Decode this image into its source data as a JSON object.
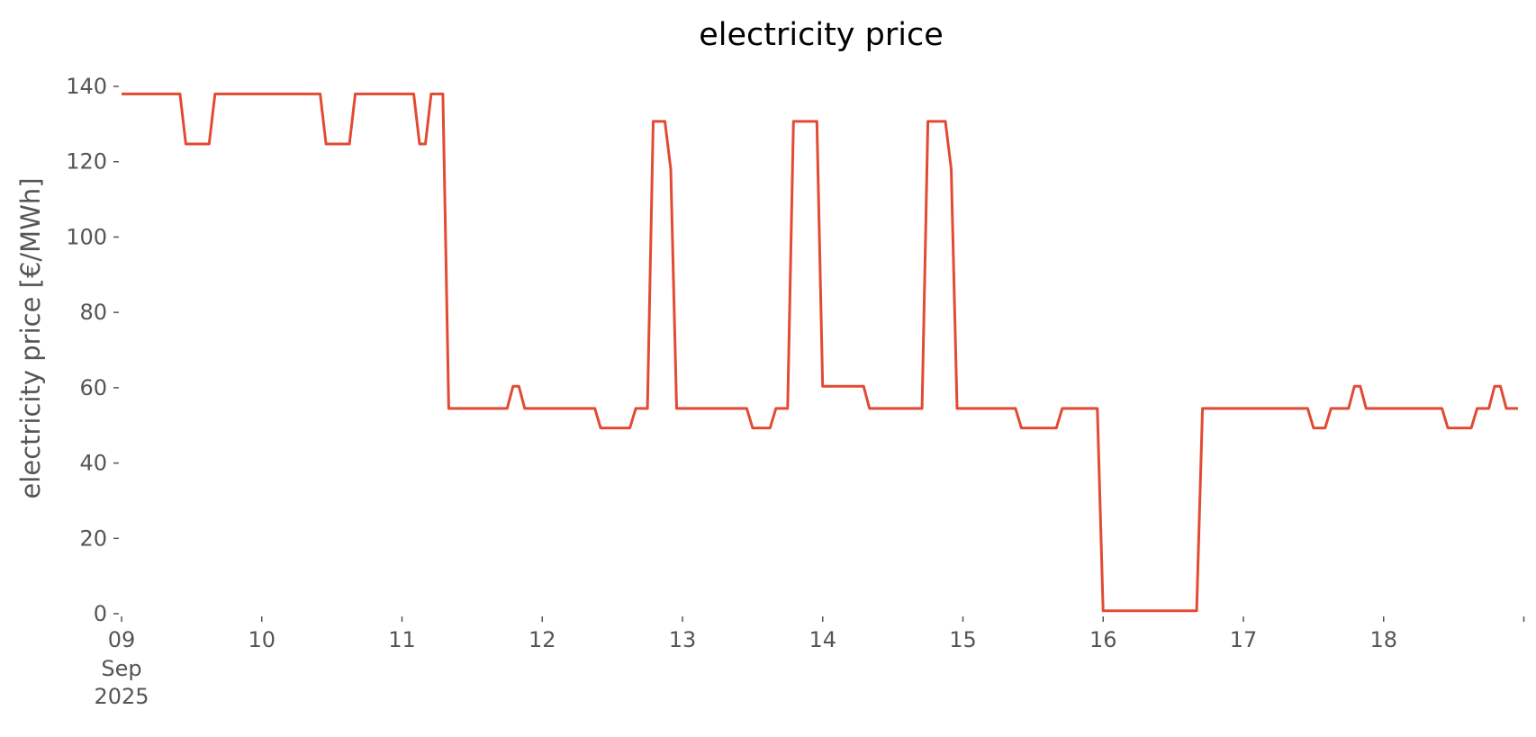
{
  "chart_data": {
    "type": "line",
    "title": "electricity price",
    "xlabel": "",
    "ylabel": "electricity price [€/MWh]",
    "xlim": [
      "2025-09-09T00:00",
      "2025-09-18T23:00"
    ],
    "ylim": [
      0,
      140
    ],
    "grid": false,
    "legend": "none",
    "yticks": [
      0,
      20,
      40,
      60,
      80,
      100,
      120,
      140
    ],
    "xticks": [
      {
        "date": "2025-09-09",
        "label": "09",
        "sublabels": [
          "Sep",
          "2025"
        ]
      },
      {
        "date": "2025-09-10",
        "label": "10",
        "sublabels": []
      },
      {
        "date": "2025-09-11",
        "label": "11",
        "sublabels": []
      },
      {
        "date": "2025-09-12",
        "label": "12",
        "sublabels": []
      },
      {
        "date": "2025-09-13",
        "label": "13",
        "sublabels": []
      },
      {
        "date": "2025-09-14",
        "label": "14",
        "sublabels": []
      },
      {
        "date": "2025-09-15",
        "label": "15",
        "sublabels": []
      },
      {
        "date": "2025-09-16",
        "label": "16",
        "sublabels": []
      },
      {
        "date": "2025-09-17",
        "label": "17",
        "sublabels": []
      },
      {
        "date": "2025-09-18",
        "label": "18",
        "sublabels": []
      },
      {
        "date": "2025-09-19",
        "label": "",
        "sublabels": []
      }
    ],
    "series": [
      {
        "color": "#e24a33",
        "points": [
          [
            "2025-09-09T00:00",
            138.0
          ],
          [
            "2025-09-09T10:00",
            138.0
          ],
          [
            "2025-09-09T11:00",
            124.7
          ],
          [
            "2025-09-09T15:00",
            124.7
          ],
          [
            "2025-09-09T16:00",
            138.0
          ],
          [
            "2025-09-10T10:00",
            138.0
          ],
          [
            "2025-09-10T11:00",
            124.7
          ],
          [
            "2025-09-10T15:00",
            124.7
          ],
          [
            "2025-09-10T16:00",
            138.0
          ],
          [
            "2025-09-11T02:00",
            138.0
          ],
          [
            "2025-09-11T03:00",
            124.7
          ],
          [
            "2025-09-11T04:00",
            124.7
          ],
          [
            "2025-09-11T05:00",
            138.0
          ],
          [
            "2025-09-11T07:00",
            138.0
          ],
          [
            "2025-09-11T08:00",
            54.5
          ],
          [
            "2025-09-11T18:00",
            54.5
          ],
          [
            "2025-09-11T19:00",
            60.4
          ],
          [
            "2025-09-11T20:00",
            60.4
          ],
          [
            "2025-09-11T21:00",
            54.5
          ],
          [
            "2025-09-12T09:00",
            54.5
          ],
          [
            "2025-09-12T10:00",
            49.3
          ],
          [
            "2025-09-12T15:00",
            49.3
          ],
          [
            "2025-09-12T16:00",
            54.5
          ],
          [
            "2025-09-12T18:00",
            54.5
          ],
          [
            "2025-09-12T19:00",
            130.7
          ],
          [
            "2025-09-12T21:00",
            130.7
          ],
          [
            "2025-09-12T22:00",
            118.0
          ],
          [
            "2025-09-12T23:00",
            54.5
          ],
          [
            "2025-09-13T11:00",
            54.5
          ],
          [
            "2025-09-13T12:00",
            49.3
          ],
          [
            "2025-09-13T15:00",
            49.3
          ],
          [
            "2025-09-13T16:00",
            54.5
          ],
          [
            "2025-09-13T18:00",
            54.5
          ],
          [
            "2025-09-13T19:00",
            130.7
          ],
          [
            "2025-09-13T23:00",
            130.7
          ],
          [
            "2025-09-14T00:00",
            60.4
          ],
          [
            "2025-09-14T07:00",
            60.4
          ],
          [
            "2025-09-14T08:00",
            54.5
          ],
          [
            "2025-09-14T17:00",
            54.5
          ],
          [
            "2025-09-14T18:00",
            130.7
          ],
          [
            "2025-09-14T21:00",
            130.7
          ],
          [
            "2025-09-14T22:00",
            118.0
          ],
          [
            "2025-09-14T23:00",
            54.5
          ],
          [
            "2025-09-15T09:00",
            54.5
          ],
          [
            "2025-09-15T10:00",
            49.3
          ],
          [
            "2025-09-15T16:00",
            49.3
          ],
          [
            "2025-09-15T17:00",
            54.5
          ],
          [
            "2025-09-15T23:00",
            54.5
          ],
          [
            "2025-09-16T00:00",
            0.8
          ],
          [
            "2025-09-16T16:00",
            0.8
          ],
          [
            "2025-09-16T17:00",
            54.5
          ],
          [
            "2025-09-17T11:00",
            54.5
          ],
          [
            "2025-09-17T12:00",
            49.3
          ],
          [
            "2025-09-17T14:00",
            49.3
          ],
          [
            "2025-09-17T15:00",
            54.5
          ],
          [
            "2025-09-17T18:00",
            54.5
          ],
          [
            "2025-09-17T19:00",
            60.4
          ],
          [
            "2025-09-17T20:00",
            60.4
          ],
          [
            "2025-09-17T21:00",
            54.5
          ],
          [
            "2025-09-18T10:00",
            54.5
          ],
          [
            "2025-09-18T11:00",
            49.3
          ],
          [
            "2025-09-18T15:00",
            49.3
          ],
          [
            "2025-09-18T16:00",
            54.5
          ],
          [
            "2025-09-18T18:00",
            54.5
          ],
          [
            "2025-09-18T19:00",
            60.4
          ],
          [
            "2025-09-18T20:00",
            60.4
          ],
          [
            "2025-09-18T21:00",
            54.5
          ],
          [
            "2025-09-18T23:00",
            54.5
          ]
        ]
      }
    ]
  }
}
